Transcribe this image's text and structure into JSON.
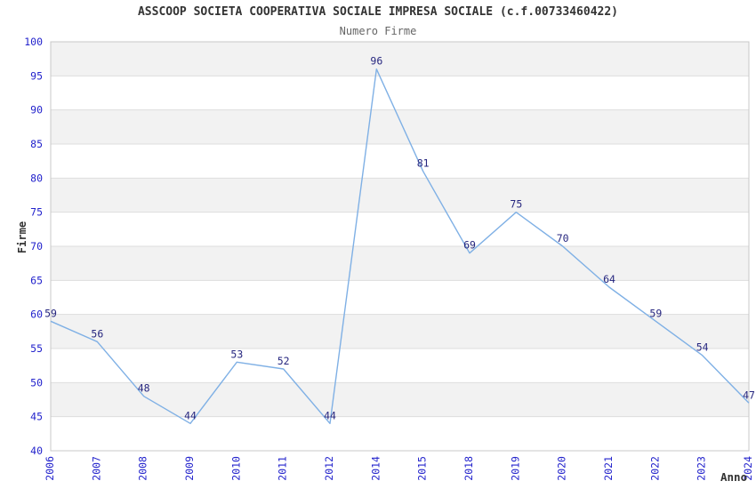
{
  "chart_data": {
    "type": "line",
    "title": "ASSCOOP SOCIETA COOPERATIVA SOCIALE IMPRESA SOCIALE (c.f.00733460422)",
    "subtitle": "Numero Firme",
    "xlabel": "Anno",
    "ylabel": "Firme",
    "categories": [
      "2006",
      "2007",
      "2008",
      "2009",
      "2010",
      "2011",
      "2012",
      "2014",
      "2015",
      "2018",
      "2019",
      "2020",
      "2021",
      "2022",
      "2023",
      "2024"
    ],
    "values": [
      59,
      56,
      48,
      44,
      53,
      52,
      44,
      96,
      81,
      69,
      75,
      70,
      64,
      59,
      54,
      47
    ],
    "ylim": [
      40,
      100
    ],
    "ytick_step": 5,
    "ytick_labels": [
      "40",
      "45",
      "50",
      "55",
      "60",
      "65",
      "70",
      "75",
      "80",
      "85",
      "90",
      "95",
      "100"
    ],
    "grid": "horizontal-bands-alternating",
    "legend": "none",
    "point_labels_visible": true,
    "colors": {
      "line": "#7FB0E5",
      "tick_label": "#2323CC",
      "point_label": "#26267F",
      "band_gray": "#F2F2F2",
      "band_white": "#FFFFFF",
      "gridline": "#DDDDDD",
      "plot_border": "#C8C8C8",
      "title_text": "#333333",
      "subtitle_text": "#666666",
      "background": "#FFFFFF"
    }
  }
}
